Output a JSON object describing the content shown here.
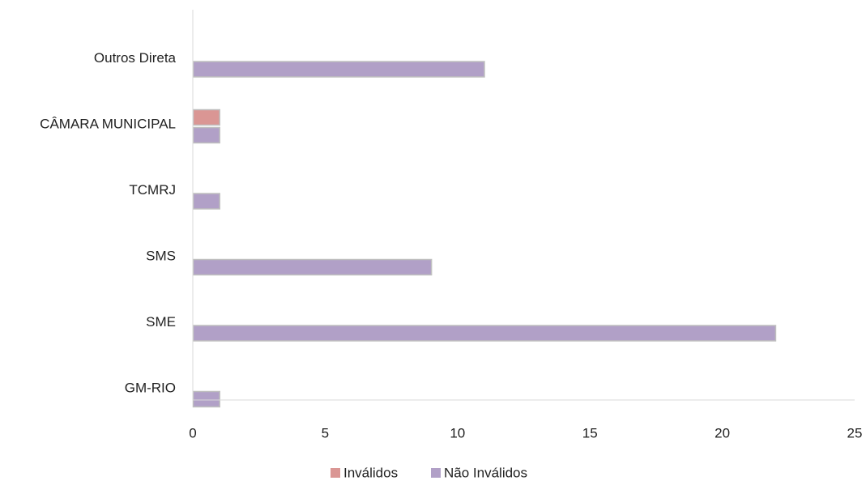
{
  "chart_data": {
    "type": "bar",
    "orientation": "horizontal",
    "categories": [
      "Outros Direta",
      "CÂMARA MUNICIPAL",
      "TCMRJ",
      "SMS",
      "SME",
      "GM-RIO"
    ],
    "series": [
      {
        "name": "Inválidos",
        "color": "#da9694",
        "values": [
          0,
          1,
          0,
          0,
          0,
          0
        ]
      },
      {
        "name": "Não Inválidos",
        "color": "#b1a0c7",
        "values": [
          11,
          1,
          1,
          9,
          22,
          1
        ]
      }
    ],
    "xlim": [
      0,
      25
    ],
    "xticks": [
      "0",
      "5",
      "10",
      "15",
      "20",
      "25"
    ],
    "grid": false,
    "legend_position": "bottom",
    "bar_border_color": "#bfbfbf",
    "axis_color": "#d9d9d9"
  }
}
